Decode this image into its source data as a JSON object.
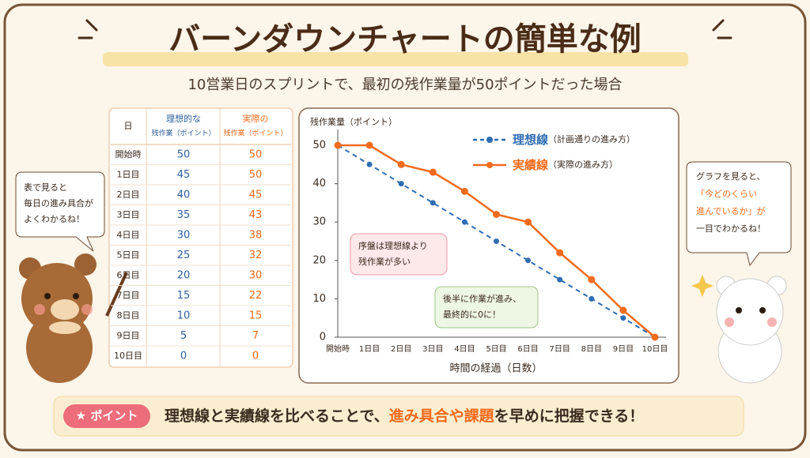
{
  "header": {
    "title": "バーンダウンチャートの簡単な例",
    "subtitle": "10営業日のスプリントで、最初の残作業量が50ポイントだった場合"
  },
  "table": {
    "columns": [
      [
        "日"
      ],
      [
        "理想的な",
        "残作業（ポイント）"
      ],
      [
        "実際の",
        "残作業（ポイント）"
      ]
    ],
    "rows": [
      [
        "開始時",
        50,
        50
      ],
      [
        "1日目",
        45,
        50
      ],
      [
        "2日目",
        40,
        45
      ],
      [
        "3日目",
        35,
        43
      ],
      [
        "4日目",
        30,
        38
      ],
      [
        "5日目",
        25,
        32
      ],
      [
        "6日目",
        20,
        30
      ],
      [
        "7日目",
        15,
        22
      ],
      [
        "8日目",
        10,
        15
      ],
      [
        "9日目",
        5,
        7
      ],
      [
        "10日目",
        0,
        0
      ]
    ]
  },
  "bubbles": {
    "left": [
      "表で見ると",
      "毎日の進み具合が",
      "よくわかるね！"
    ],
    "right": [
      "グラフを見ると、",
      "「今どのくらい",
      "進んでいるか」が",
      "一目でわかるね！"
    ]
  },
  "footer": {
    "badge": "★ ポイント",
    "lead": "理想線と実績線を比べることで、",
    "highlight": "進み具合や課題",
    "tail": "を早めに把握できる！"
  },
  "chart_data": {
    "type": "line",
    "y_label": "残作業量（ポイント）",
    "x_label": "時間の経過（日数）",
    "categories": [
      "開始時",
      "1日目",
      "2日目",
      "3日目",
      "4日目",
      "5日目",
      "6日目",
      "7日目",
      "8日目",
      "9日目",
      "10日目"
    ],
    "series": [
      {
        "name": "理想線",
        "note": "（計画通りの進み方）",
        "color": "#2f6db3",
        "dashed": true,
        "values": [
          50,
          45,
          40,
          35,
          30,
          25,
          20,
          15,
          10,
          5,
          0
        ]
      },
      {
        "name": "実績線",
        "note": "（実際の進み方）",
        "color": "#f26b1d",
        "dashed": false,
        "values": [
          50,
          50,
          45,
          43,
          38,
          32,
          30,
          22,
          15,
          7,
          0
        ]
      }
    ],
    "ylim": [
      0,
      50
    ],
    "yticks": [
      0,
      10,
      20,
      30,
      40,
      50
    ],
    "annotations": [
      {
        "lines": [
          "序盤は理想線より",
          "残作業が多い"
        ],
        "color": "#fde8ea",
        "border": "#ec9aa4"
      },
      {
        "lines": [
          "後半に作業が進み、",
          "最終的に0に！"
        ],
        "color": "#eef6e4",
        "border": "#9cc78a"
      }
    ]
  }
}
